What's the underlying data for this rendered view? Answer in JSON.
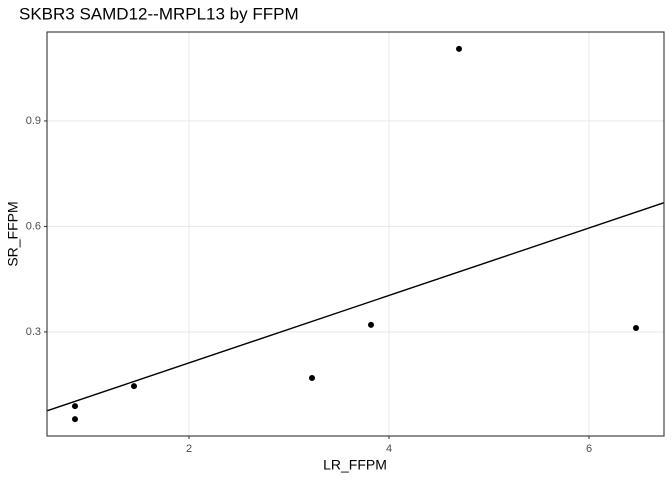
{
  "chart_data": {
    "type": "scatter",
    "title": "SKBR3 SAMD12--MRPL13 by FFPM",
    "x_label": "LR_FFPM",
    "y_label": "SR_FFPM",
    "x": [
      0.86,
      0.86,
      1.45,
      3.23,
      3.82,
      4.7,
      6.47
    ],
    "values": [
      0.089,
      0.052,
      0.146,
      0.169,
      0.32,
      1.105,
      0.311
    ],
    "color": "#000000",
    "xlim": [
      0.58,
      6.75
    ],
    "xticks": [
      2,
      4,
      6
    ],
    "ylim": [
      0.004,
      1.153
    ],
    "yticks": [
      0.3,
      0.6,
      0.9
    ],
    "grid": true,
    "trend_line": "lm",
    "trend_color": "#000000"
  }
}
